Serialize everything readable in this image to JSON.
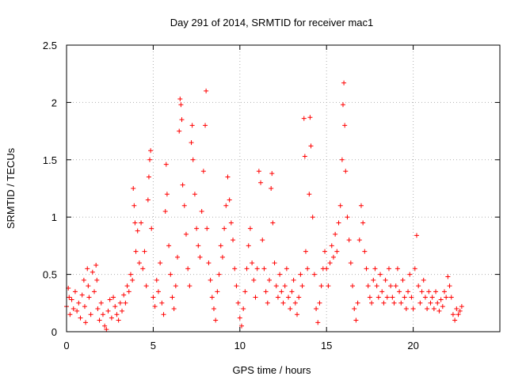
{
  "chart_data": {
    "type": "scatter",
    "title": "Day 291 of 2014, SRMTID for receiver mac1",
    "xlabel": "GPS time / hours",
    "ylabel": "SRMTID / TECUs",
    "xlim": [
      0,
      25
    ],
    "ylim": [
      0,
      2.5
    ],
    "x_ticks": [
      0,
      5,
      10,
      15,
      20
    ],
    "x_tick_labels": [
      "0",
      "5",
      "10",
      "15",
      "20"
    ],
    "y_ticks": [
      0,
      0.5,
      1,
      1.5,
      2,
      2.5
    ],
    "y_tick_labels": [
      "0",
      "0.5",
      "1",
      "1.5",
      "2",
      "2.5"
    ],
    "grid": true,
    "marker": "plus",
    "marker_color": "#ff0000",
    "series": [
      {
        "name": "SRMTID",
        "points": [
          [
            0.0,
            0.22
          ],
          [
            0.1,
            0.38
          ],
          [
            0.15,
            0.3
          ],
          [
            0.2,
            0.15
          ],
          [
            0.3,
            0.28
          ],
          [
            0.4,
            0.2
          ],
          [
            0.5,
            0.35
          ],
          [
            0.6,
            0.18
          ],
          [
            0.7,
            0.25
          ],
          [
            0.8,
            0.12
          ],
          [
            0.9,
            0.32
          ],
          [
            1.0,
            0.45
          ],
          [
            1.05,
            0.22
          ],
          [
            1.1,
            0.08
          ],
          [
            1.2,
            0.55
          ],
          [
            1.25,
            0.4
          ],
          [
            1.3,
            0.3
          ],
          [
            1.4,
            0.15
          ],
          [
            1.5,
            0.52
          ],
          [
            1.6,
            0.35
          ],
          [
            1.7,
            0.58
          ],
          [
            1.75,
            0.45
          ],
          [
            1.8,
            0.2
          ],
          [
            1.9,
            0.1
          ],
          [
            2.0,
            0.25
          ],
          [
            2.1,
            0.15
          ],
          [
            2.2,
            0.05
          ],
          [
            2.3,
            0.02
          ],
          [
            2.4,
            0.18
          ],
          [
            2.5,
            0.28
          ],
          [
            2.6,
            0.12
          ],
          [
            2.7,
            0.3
          ],
          [
            2.8,
            0.22
          ],
          [
            2.9,
            0.15
          ],
          [
            3.0,
            0.1
          ],
          [
            3.1,
            0.25
          ],
          [
            3.2,
            0.18
          ],
          [
            3.3,
            0.32
          ],
          [
            3.4,
            0.25
          ],
          [
            3.5,
            0.4
          ],
          [
            3.6,
            0.35
          ],
          [
            3.7,
            0.5
          ],
          [
            3.8,
            0.45
          ],
          [
            3.85,
            1.25
          ],
          [
            3.9,
            1.1
          ],
          [
            3.95,
            0.95
          ],
          [
            4.0,
            0.7
          ],
          [
            4.1,
            0.88
          ],
          [
            4.2,
            0.6
          ],
          [
            4.3,
            0.95
          ],
          [
            4.4,
            0.55
          ],
          [
            4.5,
            0.7
          ],
          [
            4.6,
            0.4
          ],
          [
            4.7,
            1.15
          ],
          [
            4.75,
            1.35
          ],
          [
            4.8,
            1.5
          ],
          [
            4.85,
            1.58
          ],
          [
            4.9,
            0.9
          ],
          [
            5.0,
            0.3
          ],
          [
            5.1,
            0.22
          ],
          [
            5.2,
            0.45
          ],
          [
            5.3,
            0.35
          ],
          [
            5.4,
            0.6
          ],
          [
            5.5,
            0.25
          ],
          [
            5.6,
            0.15
          ],
          [
            5.7,
            1.05
          ],
          [
            5.75,
            1.46
          ],
          [
            5.8,
            1.2
          ],
          [
            5.9,
            0.75
          ],
          [
            6.0,
            0.5
          ],
          [
            6.1,
            0.3
          ],
          [
            6.2,
            0.2
          ],
          [
            6.3,
            0.4
          ],
          [
            6.4,
            0.65
          ],
          [
            6.5,
            1.75
          ],
          [
            6.55,
            2.03
          ],
          [
            6.6,
            1.98
          ],
          [
            6.65,
            1.85
          ],
          [
            6.7,
            1.28
          ],
          [
            6.8,
            1.1
          ],
          [
            6.9,
            0.85
          ],
          [
            7.0,
            0.55
          ],
          [
            7.1,
            0.4
          ],
          [
            7.2,
            1.65
          ],
          [
            7.25,
            1.8
          ],
          [
            7.3,
            1.5
          ],
          [
            7.4,
            1.2
          ],
          [
            7.5,
            0.9
          ],
          [
            7.6,
            0.75
          ],
          [
            7.7,
            0.65
          ],
          [
            7.8,
            1.05
          ],
          [
            7.9,
            1.4
          ],
          [
            8.0,
            1.8
          ],
          [
            8.05,
            2.1
          ],
          [
            8.1,
            0.9
          ],
          [
            8.2,
            0.6
          ],
          [
            8.3,
            0.45
          ],
          [
            8.4,
            0.3
          ],
          [
            8.5,
            0.2
          ],
          [
            8.6,
            0.1
          ],
          [
            8.7,
            0.35
          ],
          [
            8.8,
            0.5
          ],
          [
            8.9,
            0.75
          ],
          [
            9.0,
            0.65
          ],
          [
            9.1,
            0.9
          ],
          [
            9.2,
            1.1
          ],
          [
            9.3,
            1.35
          ],
          [
            9.4,
            1.15
          ],
          [
            9.5,
            0.95
          ],
          [
            9.6,
            0.8
          ],
          [
            9.7,
            0.55
          ],
          [
            9.8,
            0.4
          ],
          [
            9.9,
            0.25
          ],
          [
            10.0,
            0.12
          ],
          [
            10.1,
            0.05
          ],
          [
            10.2,
            0.2
          ],
          [
            10.3,
            0.35
          ],
          [
            10.4,
            0.55
          ],
          [
            10.5,
            0.75
          ],
          [
            10.6,
            0.9
          ],
          [
            10.7,
            0.6
          ],
          [
            10.8,
            0.45
          ],
          [
            10.9,
            0.3
          ],
          [
            11.0,
            0.55
          ],
          [
            11.1,
            1.4
          ],
          [
            11.2,
            1.3
          ],
          [
            11.3,
            0.8
          ],
          [
            11.4,
            0.55
          ],
          [
            11.5,
            0.35
          ],
          [
            11.6,
            0.25
          ],
          [
            11.7,
            0.45
          ],
          [
            11.8,
            1.25
          ],
          [
            11.85,
            1.38
          ],
          [
            11.9,
            0.95
          ],
          [
            12.0,
            0.6
          ],
          [
            12.1,
            0.4
          ],
          [
            12.2,
            0.3
          ],
          [
            12.3,
            0.5
          ],
          [
            12.4,
            0.35
          ],
          [
            12.5,
            0.25
          ],
          [
            12.6,
            0.4
          ],
          [
            12.7,
            0.55
          ],
          [
            12.8,
            0.3
          ],
          [
            12.9,
            0.2
          ],
          [
            13.0,
            0.35
          ],
          [
            13.1,
            0.45
          ],
          [
            13.2,
            0.25
          ],
          [
            13.3,
            0.15
          ],
          [
            13.4,
            0.3
          ],
          [
            13.5,
            0.5
          ],
          [
            13.6,
            0.4
          ],
          [
            13.7,
            1.86
          ],
          [
            13.75,
            1.53
          ],
          [
            13.8,
            0.7
          ],
          [
            13.9,
            0.55
          ],
          [
            14.0,
            1.2
          ],
          [
            14.05,
            1.87
          ],
          [
            14.1,
            1.62
          ],
          [
            14.2,
            1.0
          ],
          [
            14.3,
            0.5
          ],
          [
            14.4,
            0.2
          ],
          [
            14.5,
            0.08
          ],
          [
            14.6,
            0.25
          ],
          [
            14.7,
            0.4
          ],
          [
            14.8,
            0.55
          ],
          [
            14.9,
            0.7
          ],
          [
            15.0,
            0.55
          ],
          [
            15.1,
            0.4
          ],
          [
            15.2,
            0.6
          ],
          [
            15.3,
            0.75
          ],
          [
            15.4,
            0.65
          ],
          [
            15.5,
            0.85
          ],
          [
            15.6,
            0.7
          ],
          [
            15.7,
            0.95
          ],
          [
            15.8,
            1.1
          ],
          [
            15.9,
            1.5
          ],
          [
            15.95,
            1.98
          ],
          [
            16.0,
            2.17
          ],
          [
            16.05,
            1.8
          ],
          [
            16.1,
            1.4
          ],
          [
            16.2,
            1.0
          ],
          [
            16.3,
            0.8
          ],
          [
            16.4,
            0.6
          ],
          [
            16.5,
            0.4
          ],
          [
            16.6,
            0.2
          ],
          [
            16.7,
            0.1
          ],
          [
            16.8,
            0.25
          ],
          [
            16.9,
            0.8
          ],
          [
            17.0,
            1.1
          ],
          [
            17.1,
            0.95
          ],
          [
            17.2,
            0.7
          ],
          [
            17.3,
            0.55
          ],
          [
            17.4,
            0.4
          ],
          [
            17.5,
            0.3
          ],
          [
            17.6,
            0.25
          ],
          [
            17.7,
            0.45
          ],
          [
            17.8,
            0.55
          ],
          [
            17.9,
            0.4
          ],
          [
            18.0,
            0.3
          ],
          [
            18.1,
            0.5
          ],
          [
            18.2,
            0.35
          ],
          [
            18.3,
            0.25
          ],
          [
            18.4,
            0.45
          ],
          [
            18.5,
            0.3
          ],
          [
            18.6,
            0.55
          ],
          [
            18.7,
            0.4
          ],
          [
            18.8,
            0.3
          ],
          [
            18.9,
            0.25
          ],
          [
            19.0,
            0.4
          ],
          [
            19.1,
            0.55
          ],
          [
            19.2,
            0.35
          ],
          [
            19.3,
            0.25
          ],
          [
            19.4,
            0.45
          ],
          [
            19.5,
            0.3
          ],
          [
            19.6,
            0.2
          ],
          [
            19.7,
            0.35
          ],
          [
            19.8,
            0.5
          ],
          [
            19.9,
            0.3
          ],
          [
            20.0,
            0.2
          ],
          [
            20.1,
            0.55
          ],
          [
            20.2,
            0.84
          ],
          [
            20.3,
            0.4
          ],
          [
            20.4,
            0.25
          ],
          [
            20.5,
            0.35
          ],
          [
            20.6,
            0.45
          ],
          [
            20.7,
            0.3
          ],
          [
            20.8,
            0.2
          ],
          [
            20.9,
            0.35
          ],
          [
            21.0,
            0.25
          ],
          [
            21.1,
            0.3
          ],
          [
            21.2,
            0.2
          ],
          [
            21.3,
            0.35
          ],
          [
            21.4,
            0.25
          ],
          [
            21.5,
            0.18
          ],
          [
            21.6,
            0.28
          ],
          [
            21.7,
            0.22
          ],
          [
            21.8,
            0.35
          ],
          [
            21.9,
            0.3
          ],
          [
            22.0,
            0.48
          ],
          [
            22.1,
            0.4
          ],
          [
            22.2,
            0.3
          ],
          [
            22.3,
            0.15
          ],
          [
            22.4,
            0.1
          ],
          [
            22.5,
            0.2
          ],
          [
            22.6,
            0.15
          ],
          [
            22.7,
            0.18
          ],
          [
            22.8,
            0.22
          ]
        ]
      }
    ]
  }
}
